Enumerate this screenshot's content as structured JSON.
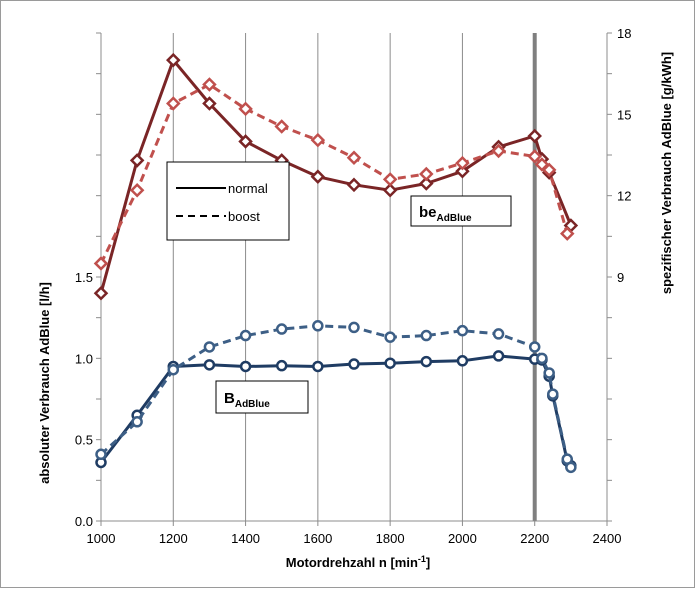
{
  "chart_data": {
    "type": "line",
    "x_axis": {
      "label_main": "Motordrehzahl n [min",
      "label_sup": "-1",
      "label_end": "]",
      "min": 1000,
      "max": 2400,
      "ticks": [
        1000,
        1200,
        1400,
        1600,
        1800,
        2000,
        2200,
        2400
      ],
      "tick_labels": [
        "1000",
        "1200",
        "1400",
        "1600",
        "1800",
        "2000",
        "2200",
        "2400"
      ]
    },
    "y_axis_left": {
      "label": "absoluter Verbrauch AdBlue [l/h]",
      "min": 0.0,
      "max": 3.0,
      "labeled_ticks": [
        0.0,
        0.5,
        1.0,
        1.5
      ],
      "tick_labels": [
        "0.0",
        "0.5",
        "1.0",
        "1.5"
      ]
    },
    "y_axis_right": {
      "label": "spezifischer Verbrauch AdBlue [g/kWh]",
      "min": 0,
      "max": 18,
      "labeled_ticks": [
        9,
        12,
        15,
        18
      ],
      "tick_labels": [
        "9",
        "12",
        "15",
        "18"
      ]
    },
    "grid": "vertical",
    "reference_line_x": 2200,
    "legend": {
      "position": "upper-left",
      "entries": [
        {
          "label": "normal",
          "style": "solid"
        },
        {
          "label": "boost",
          "style": "dashed"
        }
      ]
    },
    "annotations": [
      {
        "main": "be",
        "sub": "AdBlue"
      },
      {
        "main": "B",
        "sub": "AdBlue"
      }
    ],
    "series": [
      {
        "key": "be_normal",
        "axis": "right",
        "style": "solid",
        "marker": "diamond",
        "color": "#7a2526",
        "points": [
          [
            1000,
            8.4
          ],
          [
            1100,
            13.3
          ],
          [
            1200,
            17.0
          ],
          [
            1300,
            15.4
          ],
          [
            1400,
            14.0
          ],
          [
            1500,
            13.3
          ],
          [
            1600,
            12.7
          ],
          [
            1700,
            12.4
          ],
          [
            1800,
            12.2
          ],
          [
            1900,
            12.45
          ],
          [
            2000,
            12.9
          ],
          [
            2100,
            13.8
          ],
          [
            2200,
            14.2
          ],
          [
            2220,
            13.35
          ],
          [
            2240,
            12.85
          ],
          [
            2300,
            10.9
          ]
        ]
      },
      {
        "key": "be_boost",
        "axis": "right",
        "style": "dashed",
        "marker": "diamond",
        "color": "#c0504d",
        "points": [
          [
            1000,
            9.5
          ],
          [
            1100,
            12.2
          ],
          [
            1200,
            15.4
          ],
          [
            1300,
            16.1
          ],
          [
            1400,
            15.2
          ],
          [
            1500,
            14.55
          ],
          [
            1600,
            14.05
          ],
          [
            1700,
            13.4
          ],
          [
            1800,
            12.6
          ],
          [
            1900,
            12.8
          ],
          [
            2000,
            13.2
          ],
          [
            2100,
            13.65
          ],
          [
            2200,
            13.45
          ],
          [
            2220,
            13.15
          ],
          [
            2240,
            12.95
          ],
          [
            2290,
            10.6
          ]
        ]
      },
      {
        "key": "B_normal",
        "axis": "left",
        "style": "solid",
        "marker": "circle",
        "color": "#1f3c63",
        "points": [
          [
            1000,
            0.36
          ],
          [
            1100,
            0.65
          ],
          [
            1200,
            0.95
          ],
          [
            1300,
            0.96
          ],
          [
            1400,
            0.95
          ],
          [
            1500,
            0.955
          ],
          [
            1600,
            0.95
          ],
          [
            1700,
            0.965
          ],
          [
            1800,
            0.97
          ],
          [
            1900,
            0.98
          ],
          [
            2000,
            0.985
          ],
          [
            2100,
            1.015
          ],
          [
            2200,
            0.995
          ],
          [
            2220,
            0.99
          ],
          [
            2240,
            0.89
          ],
          [
            2250,
            0.77
          ],
          [
            2290,
            0.37
          ],
          [
            2300,
            0.34
          ]
        ]
      },
      {
        "key": "B_boost",
        "axis": "left",
        "style": "dashed",
        "marker": "circle",
        "color": "#3d5f86",
        "points": [
          [
            1000,
            0.41
          ],
          [
            1100,
            0.61
          ],
          [
            1200,
            0.93
          ],
          [
            1300,
            1.07
          ],
          [
            1400,
            1.14
          ],
          [
            1500,
            1.18
          ],
          [
            1600,
            1.2
          ],
          [
            1700,
            1.19
          ],
          [
            1800,
            1.13
          ],
          [
            1900,
            1.14
          ],
          [
            2000,
            1.17
          ],
          [
            2100,
            1.15
          ],
          [
            2200,
            1.07
          ],
          [
            2220,
            1.0
          ],
          [
            2240,
            0.91
          ],
          [
            2250,
            0.78
          ],
          [
            2290,
            0.38
          ],
          [
            2300,
            0.33
          ]
        ]
      }
    ]
  }
}
